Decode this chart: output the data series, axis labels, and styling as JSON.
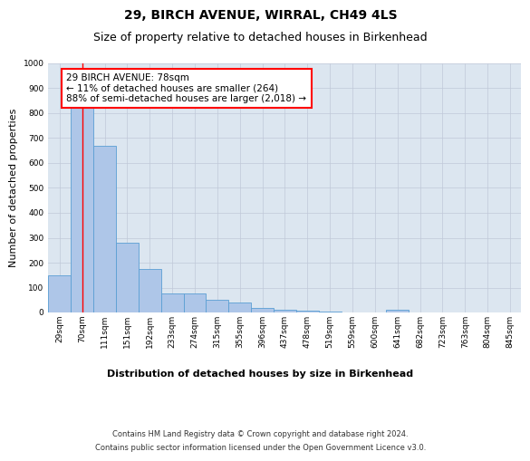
{
  "title": "29, BIRCH AVENUE, WIRRAL, CH49 4LS",
  "subtitle": "Size of property relative to detached houses in Birkenhead",
  "xlabel": "Distribution of detached houses by size in Birkenhead",
  "ylabel": "Number of detached properties",
  "categories": [
    "29sqm",
    "70sqm",
    "111sqm",
    "151sqm",
    "192sqm",
    "233sqm",
    "274sqm",
    "315sqm",
    "355sqm",
    "396sqm",
    "437sqm",
    "478sqm",
    "519sqm",
    "559sqm",
    "600sqm",
    "641sqm",
    "682sqm",
    "723sqm",
    "763sqm",
    "804sqm",
    "845sqm"
  ],
  "values": [
    150,
    820,
    670,
    280,
    175,
    75,
    75,
    50,
    40,
    20,
    12,
    8,
    5,
    0,
    0,
    10,
    0,
    0,
    0,
    0,
    0
  ],
  "bar_color": "#aec6e8",
  "bar_edge_color": "#5a9fd4",
  "property_line_x": 1,
  "annotation_text": "29 BIRCH AVENUE: 78sqm\n← 11% of detached houses are smaller (264)\n88% of semi-detached houses are larger (2,018) →",
  "annotation_box_color": "white",
  "annotation_box_edge_color": "red",
  "ylim": [
    0,
    1000
  ],
  "yticks": [
    0,
    100,
    200,
    300,
    400,
    500,
    600,
    700,
    800,
    900,
    1000
  ],
  "grid_color": "#c0c8d8",
  "background_color": "#dce6f0",
  "footer_line1": "Contains HM Land Registry data © Crown copyright and database right 2024.",
  "footer_line2": "Contains public sector information licensed under the Open Government Licence v3.0.",
  "title_fontsize": 10,
  "subtitle_fontsize": 9,
  "xlabel_fontsize": 8,
  "ylabel_fontsize": 8,
  "tick_fontsize": 6.5,
  "annotation_fontsize": 7.5,
  "footer_fontsize": 6
}
